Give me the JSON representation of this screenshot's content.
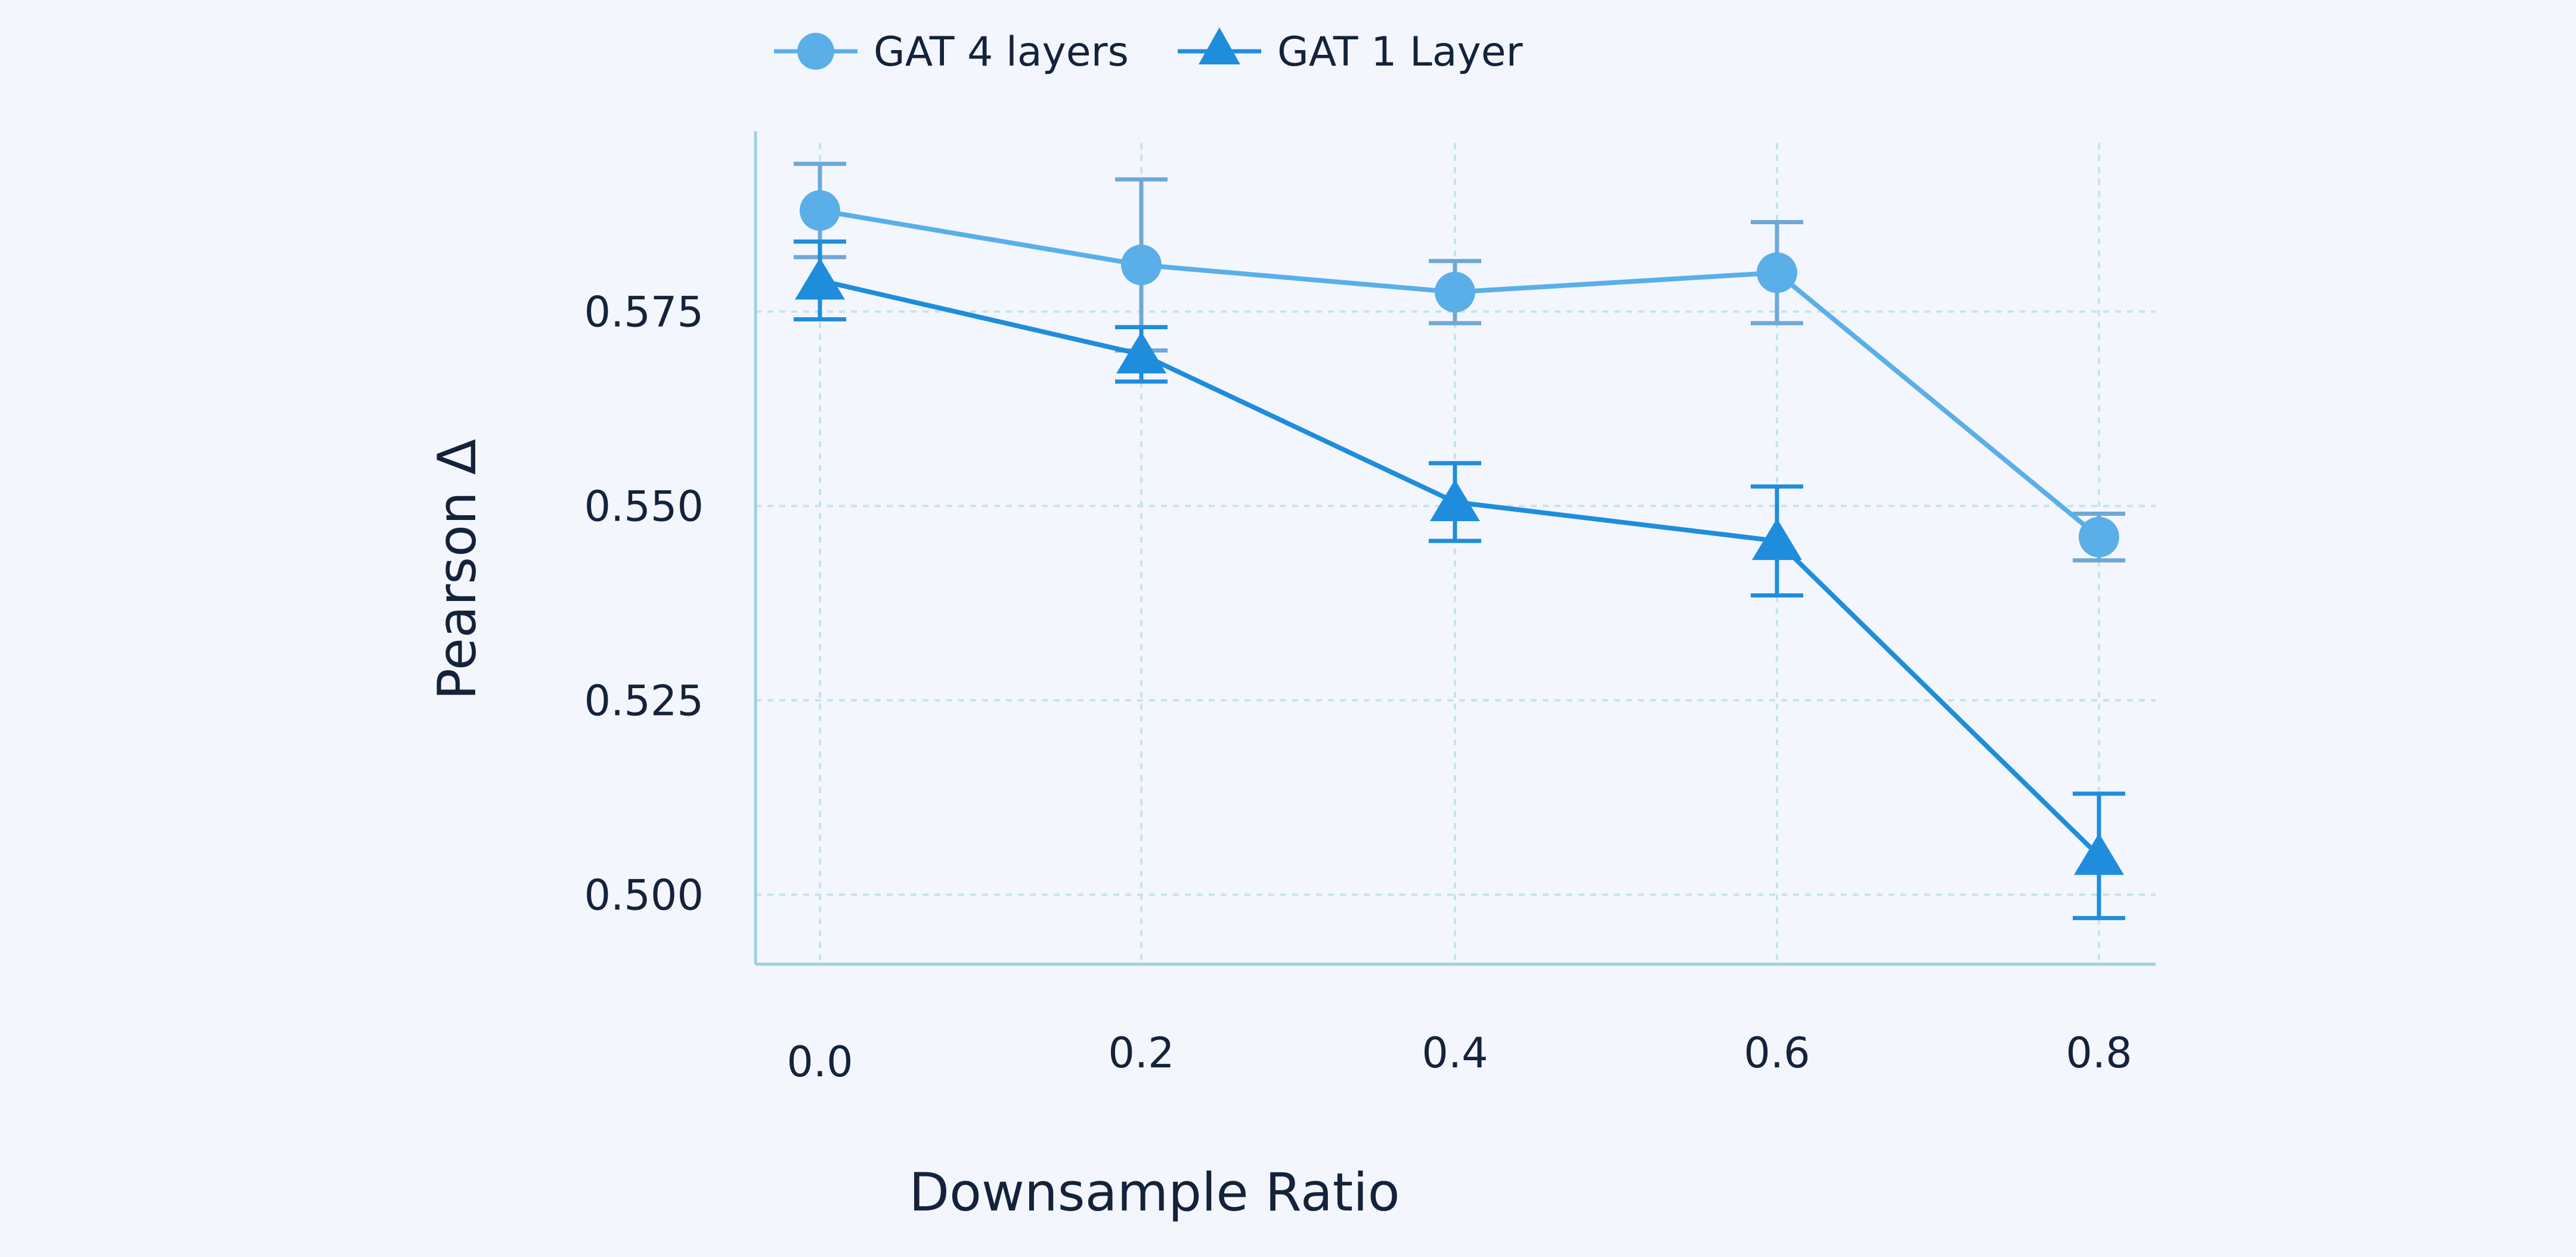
{
  "chart_data": {
    "type": "line",
    "title": "",
    "xlabel": "Downsample Ratio",
    "ylabel": "Pearson Δ",
    "x": [
      0.0,
      0.2,
      0.4,
      0.6,
      0.8
    ],
    "x_tick_labels": [
      "0.0",
      "0.2",
      "0.4",
      "0.6",
      "0.8"
    ],
    "y_ticks": [
      0.5,
      0.525,
      0.55,
      0.575
    ],
    "y_tick_labels": [
      "0.500",
      "0.525",
      "0.550",
      "0.575"
    ],
    "ylim": [
      0.4913,
      0.6
    ],
    "grid": true,
    "legend_position": "top",
    "series": [
      {
        "name": "GAT 4 layers",
        "marker": "circle",
        "color": "#5aafe8",
        "error_color": "#6fa8d6",
        "values": [
          0.588,
          0.581,
          0.5775,
          0.58,
          0.546
        ],
        "errors": [
          0.006,
          0.011,
          0.004,
          0.0065,
          0.003
        ]
      },
      {
        "name": "GAT 1 Layer",
        "marker": "triangle",
        "color": "#1f8ddc",
        "error_color": "#1f8ddc",
        "values": [
          0.579,
          0.5695,
          0.5505,
          0.5455,
          0.505
        ],
        "errors": [
          0.005,
          0.0035,
          0.005,
          0.007,
          0.008
        ]
      }
    ]
  }
}
